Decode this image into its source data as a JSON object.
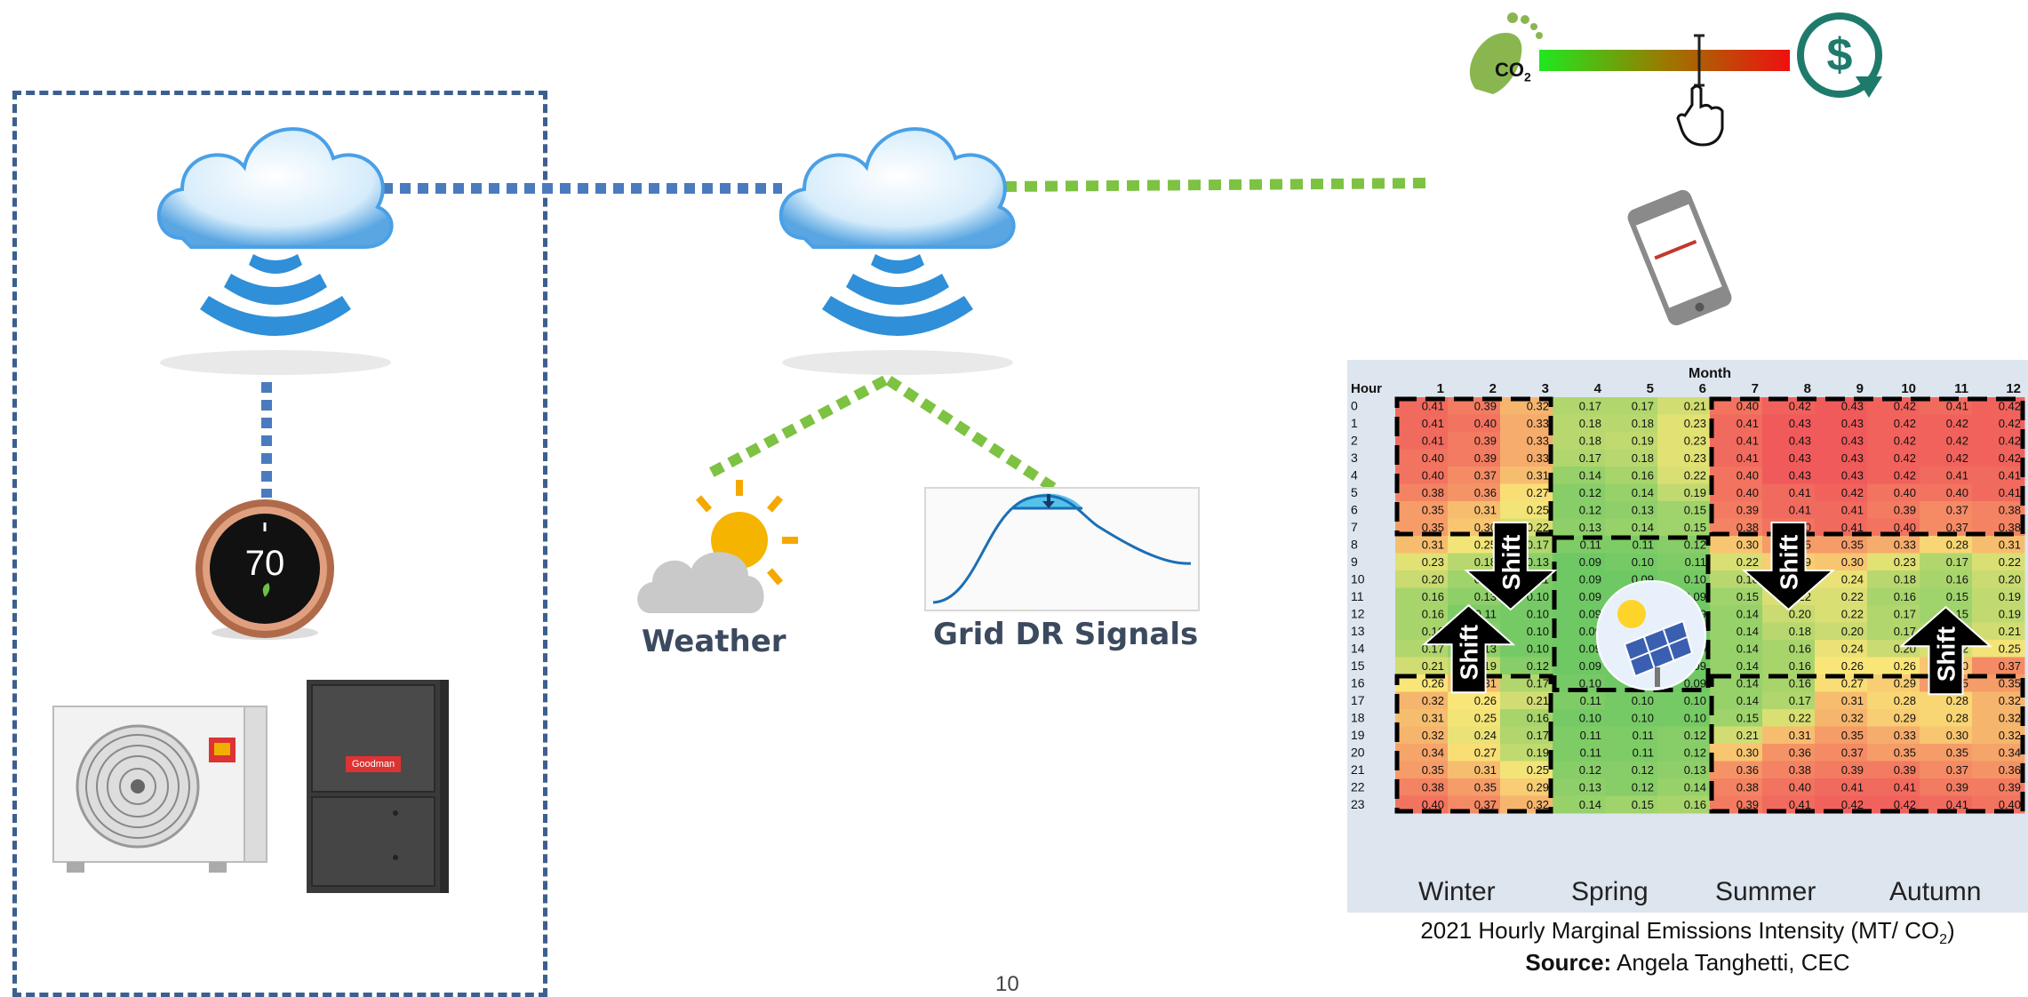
{
  "thermostat": {
    "temperature": "70"
  },
  "labels": {
    "weather": "Weather",
    "grid_dr": "Grid DR Signals"
  },
  "co2_label": "CO",
  "co2_sub": "2",
  "furnace_brand": "Goodman",
  "page_number": "10",
  "colors": {
    "cloud": "#2f8fd8",
    "blue_dots": "#4a7bbf",
    "green_dots": "#7dc242",
    "box": "#3d5f8f",
    "dollar": "#1e7b6b"
  },
  "seasons": [
    "Winter",
    "Spring",
    "Summer",
    "Autumn"
  ],
  "shift_label": "Shift",
  "caption": {
    "line1_pre": "2021 Hourly Marginal Emissions Intensity (MT/ CO",
    "line1_sub": "2",
    "line1_post": ")",
    "source_label": "Source:",
    "source_text": " Angela Tanghetti, CEC"
  },
  "chart_data": {
    "type": "heatmap",
    "title": "Month",
    "row_header": "Hour",
    "columns": [
      "1",
      "2",
      "3",
      "4",
      "5",
      "6",
      "7",
      "8",
      "9",
      "10",
      "11",
      "12"
    ],
    "rows": [
      "0",
      "1",
      "2",
      "3",
      "4",
      "5",
      "6",
      "7",
      "8",
      "9",
      "10",
      "11",
      "12",
      "13",
      "14",
      "15",
      "16",
      "17",
      "18",
      "19",
      "20",
      "21",
      "22",
      "23"
    ],
    "values": [
      [
        0.41,
        0.39,
        0.32,
        0.17,
        0.17,
        0.21,
        0.4,
        0.42,
        0.43,
        0.42,
        0.41,
        0.42
      ],
      [
        0.41,
        0.4,
        0.33,
        0.18,
        0.18,
        0.23,
        0.41,
        0.43,
        0.43,
        0.42,
        0.42,
        0.42
      ],
      [
        0.41,
        0.39,
        0.33,
        0.18,
        0.19,
        0.23,
        0.41,
        0.43,
        0.43,
        0.42,
        0.42,
        0.42
      ],
      [
        0.4,
        0.39,
        0.33,
        0.17,
        0.18,
        0.23,
        0.41,
        0.43,
        0.43,
        0.42,
        0.42,
        0.42
      ],
      [
        0.4,
        0.37,
        0.31,
        0.14,
        0.16,
        0.22,
        0.4,
        0.43,
        0.43,
        0.42,
        0.41,
        0.41
      ],
      [
        0.38,
        0.36,
        0.27,
        0.12,
        0.14,
        0.19,
        0.4,
        0.41,
        0.42,
        0.4,
        0.4,
        0.41
      ],
      [
        0.35,
        0.31,
        0.25,
        0.12,
        0.13,
        0.15,
        0.39,
        0.41,
        0.41,
        0.39,
        0.37,
        0.38
      ],
      [
        0.35,
        0.3,
        0.22,
        0.13,
        0.14,
        0.15,
        0.38,
        0.4,
        0.41,
        0.4,
        0.37,
        0.38
      ],
      [
        0.31,
        0.25,
        0.17,
        0.11,
        0.11,
        0.12,
        0.3,
        0.35,
        0.35,
        0.33,
        0.28,
        0.31
      ],
      [
        0.23,
        0.18,
        0.13,
        0.09,
        0.1,
        0.11,
        0.22,
        0.29,
        0.3,
        0.23,
        0.17,
        0.22
      ],
      [
        0.2,
        0.15,
        0.11,
        0.09,
        0.09,
        0.1,
        0.18,
        0.24,
        0.24,
        0.18,
        0.16,
        0.2
      ],
      [
        0.16,
        0.13,
        0.1,
        0.09,
        0.09,
        0.09,
        0.15,
        0.22,
        0.22,
        0.16,
        0.15,
        0.19
      ],
      [
        0.16,
        0.11,
        0.1,
        0.09,
        0.09,
        0.09,
        0.14,
        0.2,
        0.22,
        0.17,
        0.15,
        0.19
      ],
      [
        0.16,
        0.12,
        0.1,
        0.09,
        0.09,
        0.09,
        0.14,
        0.18,
        0.2,
        0.17,
        0.17,
        0.21
      ],
      [
        0.17,
        0.13,
        0.1,
        0.09,
        0.09,
        0.09,
        0.14,
        0.16,
        0.24,
        0.2,
        0.22,
        0.25
      ],
      [
        0.21,
        0.19,
        0.12,
        0.09,
        0.09,
        0.09,
        0.14,
        0.16,
        0.26,
        0.26,
        0.3,
        0.37
      ],
      [
        0.26,
        0.31,
        0.17,
        0.1,
        0.09,
        0.09,
        0.14,
        0.16,
        0.27,
        0.29,
        0.35,
        0.35
      ],
      [
        0.32,
        0.26,
        0.21,
        0.11,
        0.1,
        0.1,
        0.14,
        0.17,
        0.31,
        0.28,
        0.28,
        0.32
      ],
      [
        0.31,
        0.25,
        0.16,
        0.1,
        0.1,
        0.1,
        0.15,
        0.22,
        0.32,
        0.29,
        0.28,
        0.32
      ],
      [
        0.32,
        0.24,
        0.17,
        0.11,
        0.11,
        0.12,
        0.21,
        0.31,
        0.35,
        0.33,
        0.3,
        0.32
      ],
      [
        0.34,
        0.27,
        0.19,
        0.11,
        0.11,
        0.12,
        0.3,
        0.36,
        0.37,
        0.35,
        0.35,
        0.34
      ],
      [
        0.35,
        0.31,
        0.25,
        0.12,
        0.12,
        0.13,
        0.36,
        0.38,
        0.39,
        0.39,
        0.37,
        0.36
      ],
      [
        0.38,
        0.35,
        0.29,
        0.13,
        0.12,
        0.14,
        0.38,
        0.4,
        0.41,
        0.41,
        0.39,
        0.39
      ],
      [
        0.4,
        0.37,
        0.32,
        0.14,
        0.15,
        0.16,
        0.39,
        0.41,
        0.42,
        0.42,
        0.41,
        0.4
      ]
    ]
  }
}
